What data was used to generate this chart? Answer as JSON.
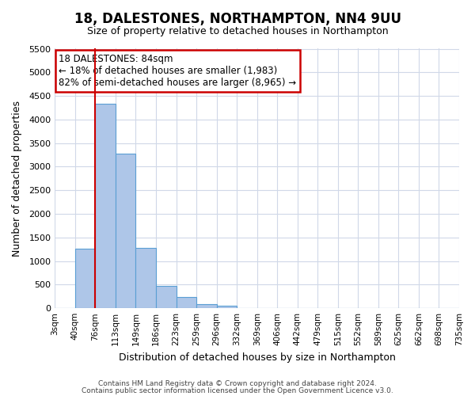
{
  "title": "18, DALESTONES, NORTHAMPTON, NN4 9UU",
  "subtitle": "Size of property relative to detached houses in Northampton",
  "xlabel": "Distribution of detached houses by size in Northampton",
  "ylabel": "Number of detached properties",
  "footer_line1": "Contains HM Land Registry data © Crown copyright and database right 2024.",
  "footer_line2": "Contains public sector information licensed under the Open Government Licence v3.0.",
  "bin_labels": [
    "3sqm",
    "40sqm",
    "76sqm",
    "113sqm",
    "149sqm",
    "186sqm",
    "223sqm",
    "259sqm",
    "296sqm",
    "332sqm",
    "369sqm",
    "406sqm",
    "442sqm",
    "479sqm",
    "515sqm",
    "552sqm",
    "589sqm",
    "625sqm",
    "662sqm",
    "698sqm",
    "735sqm"
  ],
  "bar_heights": [
    0,
    1270,
    4330,
    3280,
    1280,
    480,
    235,
    90,
    50,
    0,
    0,
    0,
    0,
    0,
    0,
    0,
    0,
    0,
    0,
    0
  ],
  "bar_color": "#aec6e8",
  "bar_edge_color": "#5a9fd4",
  "ylim": [
    0,
    5500
  ],
  "yticks": [
    0,
    500,
    1000,
    1500,
    2000,
    2500,
    3000,
    3500,
    4000,
    4500,
    5000,
    5500
  ],
  "red_line_x": 2,
  "annotation_title": "18 DALESTONES: 84sqm",
  "annotation_line1": "← 18% of detached houses are smaller (1,983)",
  "annotation_line2": "82% of semi-detached houses are larger (8,965) →",
  "annotation_box_color": "#ffffff",
  "annotation_box_edge_color": "#cc0000",
  "red_line_color": "#cc0000",
  "background_color": "#ffffff",
  "grid_color": "#d0d8e8"
}
